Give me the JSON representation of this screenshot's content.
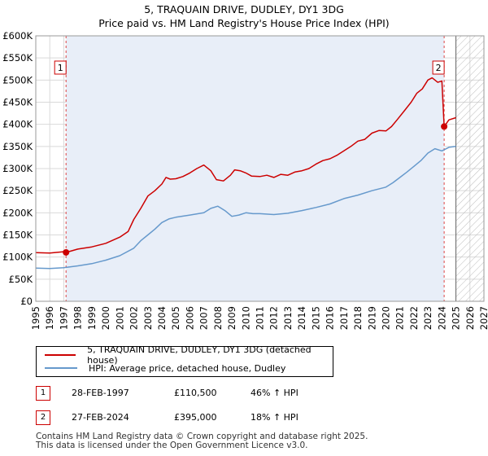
{
  "title_line1": "5, TRAQUAIN DRIVE, DUDLEY, DY1 3DG",
  "title_line2": "Price paid vs. HM Land Registry's House Price Index (HPI)",
  "colors": {
    "price_paid": "#cc0000",
    "hpi": "#6699cc",
    "sale_shade": "#e8eef8",
    "grid": "#d9d9d9",
    "marker_box_border": "#cc0000"
  },
  "chart_data": {
    "type": "line",
    "xlim": [
      1995,
      2027
    ],
    "ylim": [
      0,
      600000
    ],
    "yticks": [
      {
        "v": 0,
        "label": "£0"
      },
      {
        "v": 50000,
        "label": "£50K"
      },
      {
        "v": 100000,
        "label": "£100K"
      },
      {
        "v": 150000,
        "label": "£150K"
      },
      {
        "v": 200000,
        "label": "£200K"
      },
      {
        "v": 250000,
        "label": "£250K"
      },
      {
        "v": 300000,
        "label": "£300K"
      },
      {
        "v": 350000,
        "label": "£350K"
      },
      {
        "v": 400000,
        "label": "£400K"
      },
      {
        "v": 450000,
        "label": "£450K"
      },
      {
        "v": 500000,
        "label": "£500K"
      },
      {
        "v": 550000,
        "label": "£550K"
      },
      {
        "v": 600000,
        "label": "£600K"
      }
    ],
    "xticks": [
      "1995",
      "1996",
      "1997",
      "1998",
      "1999",
      "2000",
      "2001",
      "2002",
      "2003",
      "2004",
      "2005",
      "2006",
      "2007",
      "2008",
      "2009",
      "2010",
      "2011",
      "2012",
      "2013",
      "2014",
      "2015",
      "2016",
      "2017",
      "2018",
      "2019",
      "2020",
      "2021",
      "2022",
      "2023",
      "2024",
      "2025",
      "2026",
      "2027"
    ],
    "hatch_from": 2025.0,
    "series": [
      {
        "name": "5, TRAQUAIN DRIVE, DUDLEY, DY1 3DG (detached house)",
        "color": "#cc0000",
        "x": [
          1995.0,
          1996.0,
          1997.0,
          1997.16,
          1998.0,
          1999.0,
          2000.0,
          2001.0,
          2001.6,
          2002.0,
          2002.5,
          2003.0,
          2003.5,
          2004.0,
          2004.3,
          2004.6,
          2005.0,
          2005.5,
          2006.0,
          2006.5,
          2007.0,
          2007.5,
          2007.9,
          2008.4,
          2008.9,
          2009.2,
          2009.6,
          2010.0,
          2010.4,
          2011.0,
          2011.5,
          2012.0,
          2012.5,
          2013.0,
          2013.5,
          2014.0,
          2014.5,
          2015.0,
          2015.5,
          2016.0,
          2016.5,
          2017.0,
          2017.5,
          2018.0,
          2018.5,
          2019.0,
          2019.5,
          2020.0,
          2020.4,
          2020.8,
          2021.3,
          2021.8,
          2022.2,
          2022.6,
          2023.0,
          2023.3,
          2023.7,
          2024.0,
          2024.16,
          2024.5,
          2025.0
        ],
        "values": [
          110000,
          109000,
          112000,
          110500,
          118000,
          123000,
          131000,
          145000,
          158000,
          185000,
          210000,
          238000,
          250000,
          265000,
          280000,
          276000,
          277000,
          282000,
          290000,
          300000,
          308000,
          295000,
          275000,
          272000,
          285000,
          297000,
          295000,
          290000,
          283000,
          282000,
          285000,
          280000,
          287000,
          285000,
          292000,
          295000,
          300000,
          310000,
          318000,
          322000,
          330000,
          340000,
          350000,
          362000,
          366000,
          380000,
          386000,
          385000,
          395000,
          410000,
          430000,
          450000,
          470000,
          480000,
          500000,
          505000,
          495000,
          498000,
          395000,
          410000,
          415000
        ]
      },
      {
        "name": "HPI: Average price, detached house, Dudley",
        "color": "#6699cc",
        "x": [
          1995.0,
          1996.0,
          1997.0,
          1998.0,
          1999.0,
          2000.0,
          2001.0,
          2002.0,
          2002.5,
          2003.0,
          2003.5,
          2004.0,
          2004.5,
          2005.0,
          2006.0,
          2007.0,
          2007.5,
          2008.0,
          2008.5,
          2009.0,
          2009.5,
          2010.0,
          2010.5,
          2011.0,
          2012.0,
          2013.0,
          2014.0,
          2015.0,
          2016.0,
          2017.0,
          2018.0,
          2019.0,
          2020.0,
          2020.5,
          2021.0,
          2021.5,
          2022.0,
          2022.5,
          2023.0,
          2023.5,
          2024.0,
          2024.5,
          2025.0
        ],
        "values": [
          75000,
          74000,
          76000,
          80000,
          85000,
          93000,
          103000,
          120000,
          137000,
          150000,
          163000,
          178000,
          186000,
          190000,
          195000,
          200000,
          210000,
          215000,
          205000,
          192000,
          195000,
          200000,
          198000,
          198000,
          196000,
          199000,
          205000,
          212000,
          220000,
          232000,
          240000,
          250000,
          258000,
          268000,
          280000,
          292000,
          305000,
          318000,
          335000,
          345000,
          340000,
          348000,
          350000
        ]
      }
    ],
    "annotations": [
      {
        "label": "1",
        "x": 1997.16,
        "y": 110500
      },
      {
        "label": "2",
        "x": 2024.16,
        "y": 395000
      }
    ]
  },
  "legend": {
    "items": [
      {
        "label": "5, TRAQUAIN DRIVE, DUDLEY, DY1 3DG (detached house)",
        "color": "#cc0000"
      },
      {
        "label": "HPI: Average price, detached house, Dudley",
        "color": "#6699cc"
      }
    ]
  },
  "sales": [
    {
      "badge": "1",
      "date": "28-FEB-1997",
      "price": "£110,500",
      "hpi": "46% ↑ HPI"
    },
    {
      "badge": "2",
      "date": "27-FEB-2024",
      "price": "£395,000",
      "hpi": "18% ↑ HPI"
    }
  ],
  "footer": {
    "line1": "Contains HM Land Registry data © Crown copyright and database right 2025.",
    "line2": "This data is licensed under the Open Government Licence v3.0."
  }
}
